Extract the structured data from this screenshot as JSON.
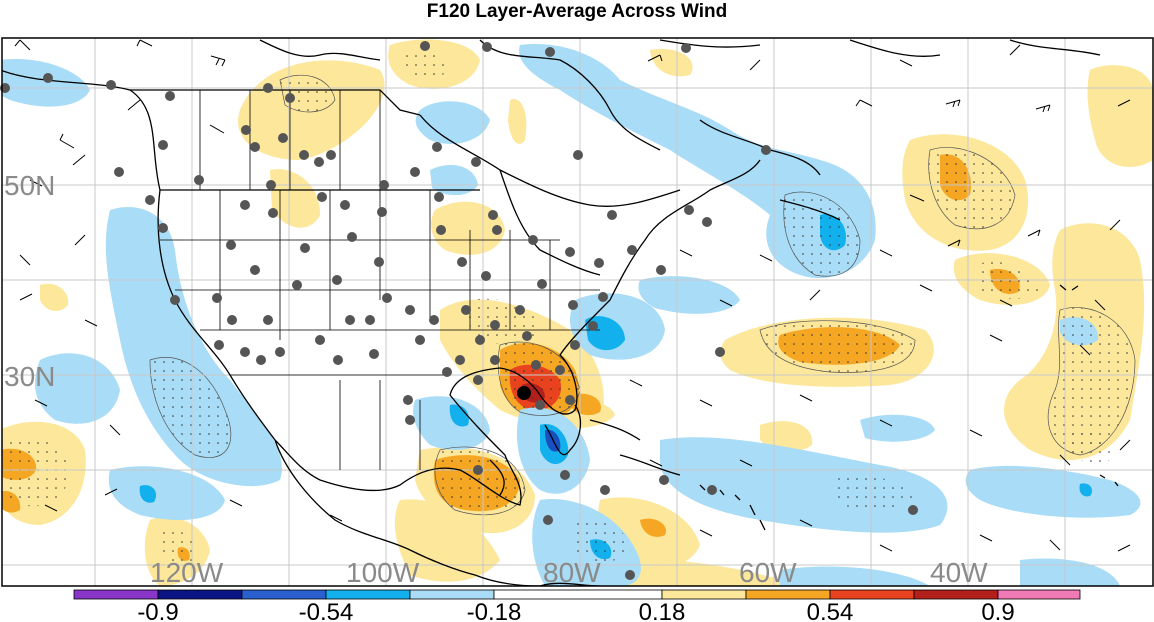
{
  "title": "F120 Layer-Average Across Wind",
  "map": {
    "lat_labels": [
      "50N",
      "30N"
    ],
    "lon_labels": [
      "120W",
      "100W",
      "80W",
      "60W",
      "40W"
    ],
    "fill_colors": {
      "weak_positive": "#fce79a",
      "moderate_positive": "#f5a623",
      "strong_positive": "#e8421f",
      "very_strong_positive": "#b3201c",
      "weak_negative": "#a9dcf6",
      "moderate_negative": "#12b0ec",
      "strong_negative": "#1a4fbf",
      "very_strong_negative": "#0a1482"
    },
    "station_marker_color": "#555555",
    "target_marker_color": "#000000"
  },
  "colorbar": {
    "labels": [
      "-0.9",
      "-0.54",
      "-0.18",
      "0.18",
      "0.54",
      "0.9"
    ],
    "colors": [
      "#8a35c9",
      "#0a1482",
      "#2a5fd0",
      "#12b0ec",
      "#a9dcf6",
      "#ffffff",
      "#fce79a",
      "#f5a623",
      "#e8421f",
      "#b3201c",
      "#f07ab6"
    ]
  }
}
